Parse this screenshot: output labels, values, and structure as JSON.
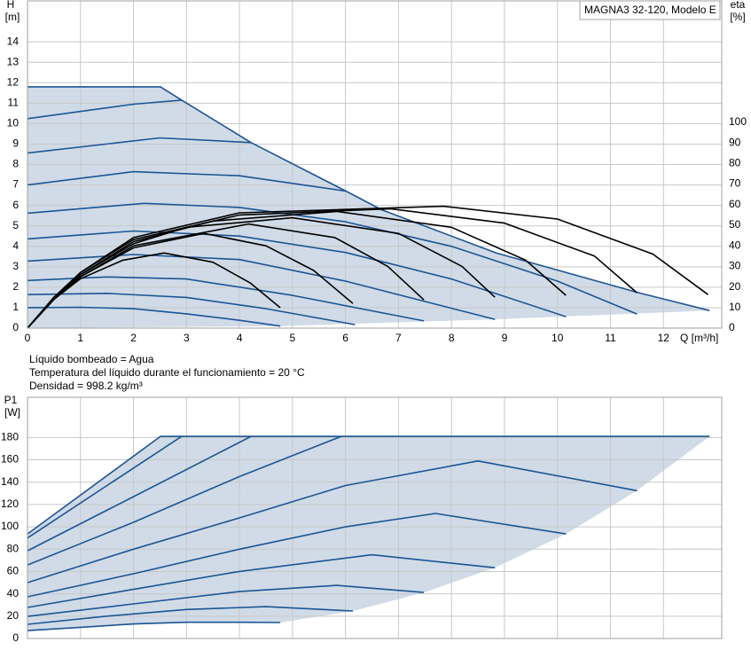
{
  "chart_data": [
    {
      "type": "line",
      "legend_text": "MAGNA3 32-120, Modelo E",
      "y_label": "H",
      "y_unit": "[m]",
      "y2_label": "eta",
      "y2_unit": "[%]",
      "x_label": "Q [m³/h]",
      "xlim": [
        0,
        13.1
      ],
      "xticks": [
        0,
        1,
        2,
        3,
        4,
        5,
        6,
        7,
        8,
        9,
        10,
        11,
        12
      ],
      "ylim": [
        0,
        16
      ],
      "yticks": [
        0,
        1,
        2,
        3,
        4,
        5,
        6,
        7,
        8,
        9,
        10,
        11,
        12,
        13,
        14
      ],
      "y2lim": [
        0,
        159
      ],
      "y2ticks": [
        0,
        10,
        20,
        30,
        40,
        50,
        60,
        70,
        80,
        90,
        100
      ],
      "grid": true,
      "area": {
        "color": "#d0dbe7",
        "x": [
          0,
          2.51,
          2.91,
          4.22,
          6.01,
          6.68,
          8.85,
          11.53,
          12.87,
          8.82,
          4.77,
          0
        ],
        "values": [
          11.8,
          11.8,
          11.15,
          9.07,
          6.7,
          5.79,
          3.67,
          1.73,
          0.86,
          0.43,
          0.1,
          0
        ]
      },
      "series": [
        {
          "color": "#1b5594",
          "x": [
            0,
            1,
            2,
            3,
            4,
            4.77
          ],
          "values": [
            1.0,
            1.02,
            0.95,
            0.7,
            0.38,
            0.1
          ]
        },
        {
          "color": "#1b5594",
          "x": [
            0,
            1.5,
            3,
            4.5,
            6.18
          ],
          "values": [
            1.64,
            1.7,
            1.5,
            0.95,
            0.17
          ]
        },
        {
          "color": "#1b5594",
          "x": [
            0,
            1.5,
            3,
            5,
            7.48
          ],
          "values": [
            2.33,
            2.5,
            2.4,
            1.6,
            0.35
          ]
        },
        {
          "color": "#1b5594",
          "x": [
            0,
            2,
            4,
            6,
            8.82
          ],
          "values": [
            3.28,
            3.6,
            3.35,
            2.3,
            0.43
          ]
        },
        {
          "color": "#1b5594",
          "x": [
            0,
            2,
            4,
            6,
            8,
            10.16
          ],
          "values": [
            4.36,
            4.75,
            4.5,
            3.7,
            2.4,
            0.56
          ]
        },
        {
          "color": "#1b5594",
          "x": [
            0,
            2.2,
            4,
            6,
            8,
            10,
            11.5
          ],
          "values": [
            5.62,
            6.1,
            5.9,
            5.2,
            4.0,
            2.3,
            0.69
          ]
        },
        {
          "color": "#1b5594",
          "x": [
            0,
            2,
            4,
            6.01
          ],
          "values": [
            7.0,
            7.65,
            7.45,
            6.7
          ]
        },
        {
          "color": "#1b5594",
          "x": [
            0,
            2.5,
            4.22
          ],
          "values": [
            8.56,
            9.3,
            9.07
          ]
        },
        {
          "color": "#1b5594",
          "x": [
            0,
            2,
            2.91
          ],
          "values": [
            10.24,
            10.95,
            11.15
          ]
        },
        {
          "color": "#1b5594",
          "x": [
            0,
            2.51,
            2.91,
            4.22,
            6.01,
            6.68,
            8.85,
            11.53,
            12.87
          ],
          "values": [
            11.8,
            11.8,
            11.15,
            9.07,
            6.7,
            5.79,
            3.67,
            1.73,
            0.86
          ]
        },
        {
          "color": "#000000",
          "axis": "y2",
          "x": [
            0,
            0.5,
            1,
            1.8,
            2.58,
            3.5,
            4.2,
            4.77
          ],
          "values": [
            0,
            14,
            24,
            33,
            36.5,
            32,
            22,
            9.9
          ]
        },
        {
          "color": "#000000",
          "axis": "y2",
          "x": [
            0,
            0.5,
            1,
            2,
            3.33,
            4.5,
            5.4,
            6.14
          ],
          "values": [
            0,
            14,
            25,
            39,
            46,
            40,
            28,
            12
          ]
        },
        {
          "color": "#000000",
          "axis": "y2",
          "x": [
            0,
            0.5,
            1,
            2,
            4.17,
            5.8,
            6.8,
            7.48
          ],
          "values": [
            0,
            14,
            25,
            40,
            50.6,
            44,
            30,
            13.7
          ]
        },
        {
          "color": "#000000",
          "axis": "y2",
          "x": [
            0,
            0.5,
            1,
            2,
            3,
            5,
            7,
            8.2,
            8.82
          ],
          "values": [
            0,
            14,
            26,
            41,
            49,
            53.6,
            46,
            30,
            15
          ]
        },
        {
          "color": "#000000",
          "axis": "y2",
          "x": [
            0,
            0.5,
            1,
            2,
            3.5,
            5.84,
            8,
            9.4,
            10.16
          ],
          "values": [
            0,
            15,
            26,
            42,
            52,
            56.7,
            49,
            33,
            15.9
          ]
        },
        {
          "color": "#000000",
          "axis": "y2",
          "x": [
            0,
            0.5,
            1,
            2,
            4,
            6.85,
            9,
            10.7,
            11.5
          ],
          "values": [
            0,
            15,
            27,
            43,
            55,
            58,
            51,
            35,
            17.2
          ]
        },
        {
          "color": "#000000",
          "axis": "y2",
          "x": [
            0,
            0.5,
            1,
            2,
            4,
            7.85,
            10,
            11.8,
            12.84
          ],
          "values": [
            0,
            15,
            27,
            44,
            56,
            59.2,
            53,
            36,
            16.3
          ]
        }
      ]
    },
    {
      "type": "line",
      "notes": [
        "Líquido bombeado = Agua",
        "Temperatura del líquido durante el funcionamiento = 20 °C",
        "Densidad = 998.2 kg/m³"
      ],
      "y_label": "P1",
      "y_unit": "[W]",
      "ylim": [
        0,
        216
      ],
      "yticks": [
        0,
        20,
        40,
        60,
        80,
        100,
        120,
        140,
        160,
        180
      ],
      "grid": true,
      "area": {
        "color": "#d0dbe7",
        "x": [
          0,
          2.51,
          12.87,
          11.5,
          10.16,
          8.82,
          7.48,
          6.14,
          4.77,
          3,
          1,
          0
        ],
        "values": [
          93.6,
          181,
          181,
          132.4,
          93.6,
          63.4,
          41.2,
          24.6,
          14.3,
          14.5,
          10,
          7.1
        ]
      },
      "series": [
        {
          "color": "#1b5594",
          "x": [
            0,
            1,
            2,
            3,
            4,
            4.77
          ],
          "values": [
            7.1,
            10,
            13,
            14.5,
            14.5,
            14.3
          ]
        },
        {
          "color": "#1b5594",
          "x": [
            0,
            1.5,
            3,
            4.5,
            6.14
          ],
          "values": [
            12.7,
            20,
            26,
            28.5,
            24.6
          ]
        },
        {
          "color": "#1b5594",
          "x": [
            0,
            2,
            4,
            5.84,
            7.48
          ],
          "values": [
            19.8,
            31,
            42,
            47.6,
            41.2
          ]
        },
        {
          "color": "#1b5594",
          "x": [
            0,
            2,
            4,
            6.5,
            8.82
          ],
          "values": [
            27.8,
            44,
            60,
            75,
            63.4
          ]
        },
        {
          "color": "#1b5594",
          "x": [
            0,
            2,
            4,
            6,
            7.7,
            10.16
          ],
          "values": [
            37.3,
            58,
            80,
            100,
            112,
            93.6
          ]
        },
        {
          "color": "#1b5594",
          "x": [
            0,
            2,
            4,
            6,
            8.5,
            11.5
          ],
          "values": [
            50,
            80,
            108,
            137,
            159,
            132.4
          ]
        },
        {
          "color": "#1b5594",
          "x": [
            0,
            2,
            4,
            5.92
          ],
          "values": [
            65.8,
            104,
            145,
            181
          ]
        },
        {
          "color": "#1b5594",
          "x": [
            0,
            2,
            4.22
          ],
          "values": [
            78.5,
            127,
            181
          ]
        },
        {
          "color": "#1b5594",
          "x": [
            0,
            1.5,
            2.91
          ],
          "values": [
            90,
            137,
            181
          ]
        },
        {
          "color": "#1b5594",
          "x": [
            0,
            2.51,
            12.87
          ],
          "values": [
            93.6,
            181,
            181
          ]
        }
      ]
    }
  ]
}
